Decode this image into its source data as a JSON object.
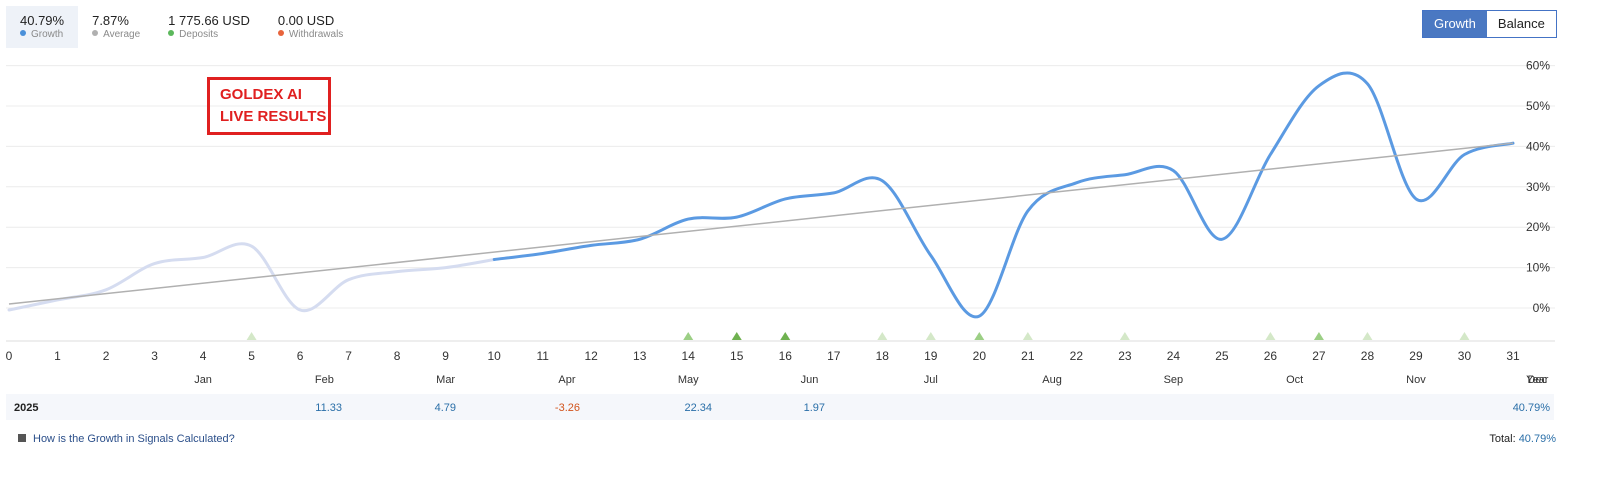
{
  "stats": [
    {
      "value": "40.79%",
      "label": "Growth",
      "color": "#4a90d9",
      "active": true
    },
    {
      "value": "7.87%",
      "label": "Average",
      "color": "#b0b0b0",
      "active": false
    },
    {
      "value": "1 775.66 USD",
      "label": "Deposits",
      "color": "#5cb85c",
      "active": false
    },
    {
      "value": "0.00 USD",
      "label": "Withdrawals",
      "color": "#e8643c",
      "active": false
    }
  ],
  "toggle": {
    "growth": "Growth",
    "balance": "Balance"
  },
  "badge": {
    "line1": "GOLDEX AI",
    "line2": "LIVE RESULTS"
  },
  "chart_data": {
    "type": "line",
    "x_ticks": [
      "0",
      "1",
      "2",
      "3",
      "4",
      "5",
      "6",
      "7",
      "8",
      "9",
      "10",
      "11",
      "12",
      "13",
      "14",
      "15",
      "16",
      "17",
      "18",
      "19",
      "20",
      "21",
      "22",
      "23",
      "24",
      "25",
      "26",
      "27",
      "28",
      "29",
      "30",
      "31"
    ],
    "xlim": [
      0,
      31
    ],
    "ylim": [
      -8,
      62
    ],
    "y_ticks": [
      0,
      10,
      20,
      30,
      40,
      50,
      60
    ],
    "y_tick_labels": [
      "0%",
      "10%",
      "20%",
      "30%",
      "40%",
      "50%",
      "60%"
    ],
    "months": [
      "Jan",
      "Feb",
      "Mar",
      "Apr",
      "May",
      "Jun",
      "Jul",
      "Aug",
      "Sep",
      "Oct",
      "Nov",
      "Dec",
      "Year"
    ],
    "grid": true,
    "series": [
      {
        "role": "growth-history",
        "color": "#d5dcf0",
        "x": [
          0,
          1,
          2,
          3,
          4,
          5,
          6,
          7,
          8,
          9,
          10
        ],
        "y": [
          -0.5,
          2.0,
          4.5,
          11.0,
          12.5,
          15.3,
          -0.5,
          7.0,
          9.0,
          10.0,
          12.0
        ]
      },
      {
        "role": "growth",
        "color": "#5b9ae2",
        "x": [
          10,
          11,
          12,
          13,
          14,
          15,
          16,
          17,
          18,
          19,
          20,
          21,
          22,
          23,
          24,
          25,
          26,
          27,
          28,
          29,
          30,
          31
        ],
        "y": [
          12.0,
          13.5,
          15.5,
          17.0,
          22.0,
          22.5,
          27.0,
          28.5,
          31.5,
          13.0,
          -2.0,
          24.0,
          31.0,
          33.0,
          34.0,
          17.0,
          38.0,
          55.0,
          55.5,
          27.0,
          38.0,
          40.79
        ]
      },
      {
        "role": "average-trend",
        "color": "#b0b0b0",
        "x": [
          0,
          31
        ],
        "y": [
          1.0,
          40.8
        ]
      }
    ],
    "markers": [
      {
        "x": 5,
        "kind": "light"
      },
      {
        "x": 14,
        "kind": "medium"
      },
      {
        "x": 15,
        "kind": "dark"
      },
      {
        "x": 16,
        "kind": "dark"
      },
      {
        "x": 18,
        "kind": "light"
      },
      {
        "x": 19,
        "kind": "light"
      },
      {
        "x": 20,
        "kind": "medium"
      },
      {
        "x": 21,
        "kind": "light"
      },
      {
        "x": 23,
        "kind": "light"
      },
      {
        "x": 26,
        "kind": "light"
      },
      {
        "x": 27,
        "kind": "medium"
      },
      {
        "x": 28,
        "kind": "light"
      },
      {
        "x": 30,
        "kind": "light"
      }
    ],
    "marker_colors": {
      "light": "#d4e8c8",
      "medium": "#9ccf85",
      "dark": "#6fb150"
    }
  },
  "year_row": {
    "year": "2025",
    "months": [
      {
        "month": "Feb",
        "value": "11.33",
        "color": "#2a6fa8"
      },
      {
        "month": "Mar",
        "value": "4.79",
        "color": "#2a6fa8"
      },
      {
        "month": "Apr",
        "value": "-3.26",
        "color": "#d2541c"
      },
      {
        "month": "May",
        "value": "22.34",
        "color": "#2a6fa8"
      },
      {
        "month": "Jun",
        "value": "1.97",
        "color": "#2a6fa8"
      },
      {
        "month": "Year",
        "value": "40.79%",
        "color": "#2a6fa8"
      }
    ]
  },
  "footer": {
    "link": "How is the Growth in Signals Calculated?",
    "total_label": "Total:",
    "total_value": "40.79%"
  }
}
